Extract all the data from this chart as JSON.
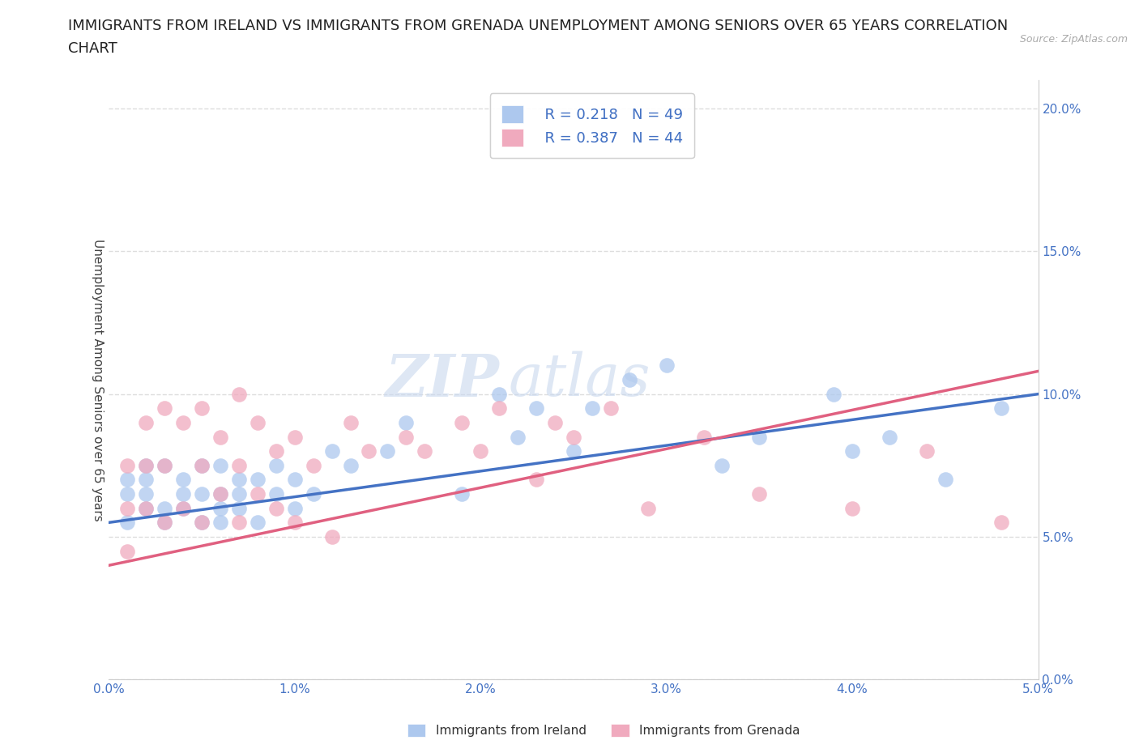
{
  "title_line1": "IMMIGRANTS FROM IRELAND VS IMMIGRANTS FROM GRENADA UNEMPLOYMENT AMONG SENIORS OVER 65 YEARS CORRELATION",
  "title_line2": "CHART",
  "source": "Source: ZipAtlas.com",
  "ylabel": "Unemployment Among Seniors over 65 years",
  "legend_ireland": "Immigrants from Ireland",
  "legend_grenada": "Immigrants from Grenada",
  "R_ireland": 0.218,
  "N_ireland": 49,
  "R_grenada": 0.387,
  "N_grenada": 44,
  "ireland_color": "#adc8ee",
  "grenada_color": "#f0aabe",
  "ireland_line_color": "#4472c4",
  "grenada_line_color": "#e06080",
  "ireland_x": [
    0.001,
    0.001,
    0.001,
    0.002,
    0.002,
    0.002,
    0.002,
    0.003,
    0.003,
    0.003,
    0.004,
    0.004,
    0.004,
    0.005,
    0.005,
    0.005,
    0.006,
    0.006,
    0.006,
    0.006,
    0.007,
    0.007,
    0.007,
    0.008,
    0.008,
    0.009,
    0.009,
    0.01,
    0.01,
    0.011,
    0.012,
    0.013,
    0.015,
    0.016,
    0.019,
    0.021,
    0.022,
    0.023,
    0.025,
    0.026,
    0.028,
    0.03,
    0.033,
    0.035,
    0.039,
    0.04,
    0.042,
    0.045,
    0.048
  ],
  "ireland_y": [
    0.055,
    0.065,
    0.07,
    0.06,
    0.065,
    0.07,
    0.075,
    0.055,
    0.06,
    0.075,
    0.06,
    0.065,
    0.07,
    0.055,
    0.065,
    0.075,
    0.055,
    0.06,
    0.065,
    0.075,
    0.06,
    0.065,
    0.07,
    0.055,
    0.07,
    0.065,
    0.075,
    0.06,
    0.07,
    0.065,
    0.08,
    0.075,
    0.08,
    0.09,
    0.065,
    0.1,
    0.085,
    0.095,
    0.08,
    0.095,
    0.105,
    0.11,
    0.075,
    0.085,
    0.1,
    0.08,
    0.085,
    0.07,
    0.095
  ],
  "grenada_x": [
    0.001,
    0.001,
    0.001,
    0.002,
    0.002,
    0.002,
    0.003,
    0.003,
    0.003,
    0.004,
    0.004,
    0.005,
    0.005,
    0.005,
    0.006,
    0.006,
    0.007,
    0.007,
    0.007,
    0.008,
    0.008,
    0.009,
    0.009,
    0.01,
    0.01,
    0.011,
    0.012,
    0.013,
    0.014,
    0.016,
    0.017,
    0.019,
    0.02,
    0.021,
    0.023,
    0.024,
    0.025,
    0.027,
    0.029,
    0.032,
    0.035,
    0.04,
    0.044,
    0.048
  ],
  "grenada_y": [
    0.045,
    0.06,
    0.075,
    0.06,
    0.075,
    0.09,
    0.055,
    0.075,
    0.095,
    0.06,
    0.09,
    0.055,
    0.075,
    0.095,
    0.065,
    0.085,
    0.055,
    0.075,
    0.1,
    0.065,
    0.09,
    0.06,
    0.08,
    0.055,
    0.085,
    0.075,
    0.05,
    0.09,
    0.08,
    0.085,
    0.08,
    0.09,
    0.08,
    0.095,
    0.07,
    0.09,
    0.085,
    0.095,
    0.06,
    0.085,
    0.065,
    0.06,
    0.08,
    0.055
  ],
  "xlim": [
    0.0,
    0.05
  ],
  "ylim": [
    0.0,
    0.21
  ],
  "xticks": [
    0.0,
    0.01,
    0.02,
    0.03,
    0.04,
    0.05
  ],
  "yticks": [
    0.0,
    0.05,
    0.1,
    0.15,
    0.2
  ],
  "grid_color": "#dddddd",
  "background_color": "#ffffff",
  "watermark_zip": "ZIP",
  "watermark_atlas": "atlas",
  "title_fontsize": 13,
  "axis_label_fontsize": 11,
  "tick_fontsize": 11,
  "ireland_trend_y0": 0.055,
  "ireland_trend_y1": 0.1,
  "grenada_trend_y0": 0.04,
  "grenada_trend_y1": 0.108
}
